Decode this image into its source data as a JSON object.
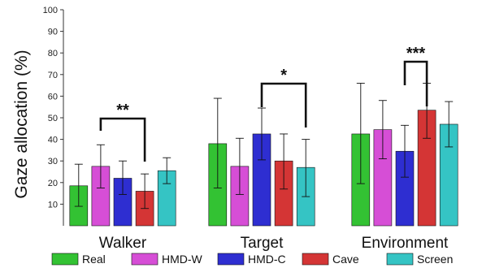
{
  "chart_data": {
    "type": "bar",
    "ylabel": "Gaze allocation (%)",
    "xlabel": "",
    "ylim": [
      0,
      100
    ],
    "yticks": [
      10,
      20,
      30,
      40,
      50,
      60,
      70,
      80,
      90,
      100
    ],
    "categories": [
      "Walker",
      "Target",
      "Environment"
    ],
    "series": [
      {
        "name": "Real",
        "color": "#33c233",
        "values": [
          18.5,
          38,
          42.5
        ],
        "err_low": [
          9,
          17.5,
          19.5
        ],
        "err_high": [
          28.5,
          59,
          66
        ]
      },
      {
        "name": "HMD-W",
        "color": "#d64ed6",
        "values": [
          27.5,
          27.5,
          44.5
        ],
        "err_low": [
          17.5,
          14.5,
          31
        ],
        "err_high": [
          37.5,
          40.5,
          58
        ]
      },
      {
        "name": "HMD-C",
        "color": "#2e2ed1",
        "values": [
          22,
          42.5,
          34.5
        ],
        "err_low": [
          14.5,
          30.5,
          22.5
        ],
        "err_high": [
          30,
          54.5,
          46.5
        ]
      },
      {
        "name": "Cave",
        "color": "#d43535",
        "values": [
          16,
          30,
          53.5
        ],
        "err_low": [
          8,
          17,
          40.5
        ],
        "err_high": [
          24,
          42.5,
          66
        ]
      },
      {
        "name": "Screen",
        "color": "#35c4c4",
        "values": [
          25.5,
          27,
          47
        ],
        "err_low": [
          19.5,
          13.5,
          36.5
        ],
        "err_high": [
          31.5,
          40,
          57.5
        ]
      }
    ],
    "significance": [
      {
        "category": "Walker",
        "from_series": "HMD-W",
        "to_series": "Cave",
        "label": "**"
      },
      {
        "category": "Target",
        "from_series": "HMD-C",
        "to_series": "Screen",
        "label": "*"
      },
      {
        "category": "Environment",
        "from_series": "HMD-C",
        "to_series": "Cave",
        "label": "***"
      }
    ],
    "legend_position": "bottom",
    "grid": false
  }
}
